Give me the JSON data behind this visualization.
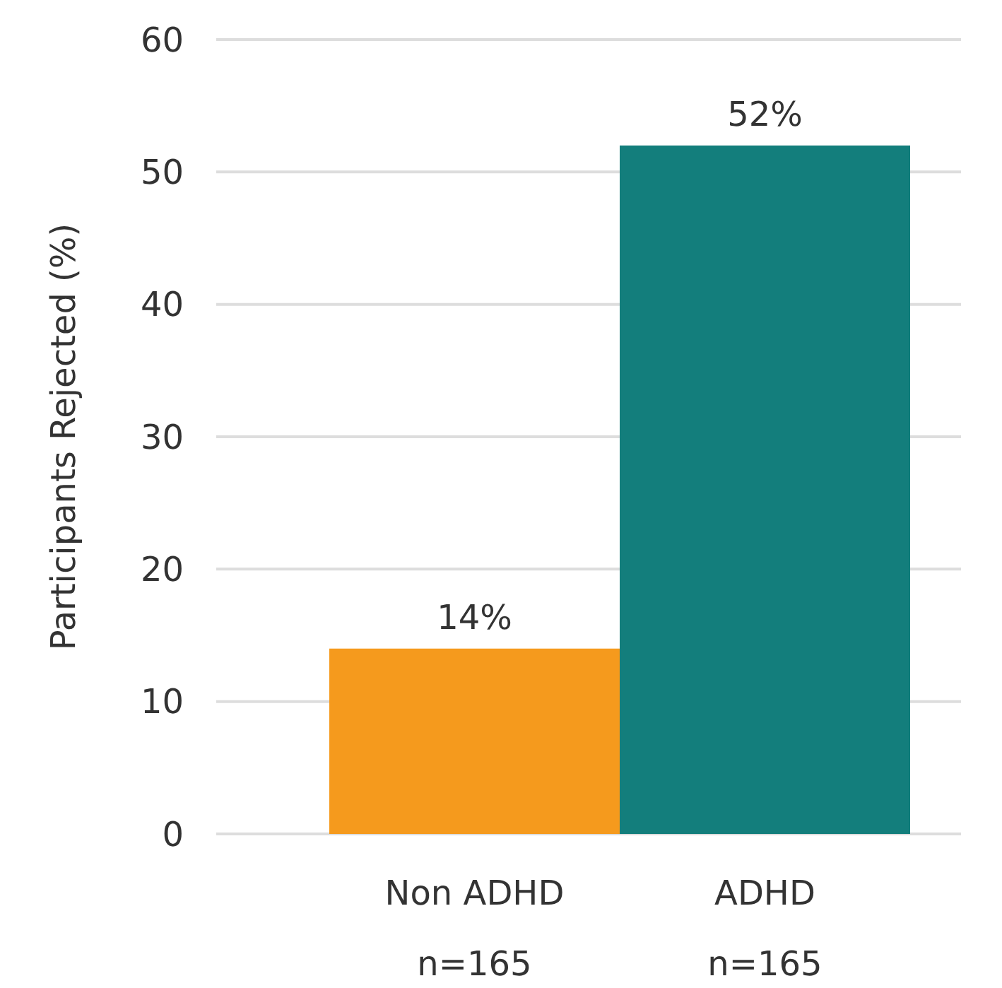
{
  "chart_data": {
    "type": "bar",
    "ylabel": "Participants Rejected (%)",
    "categories": [
      "Non ADHD\nn=165",
      "ADHD\nn=165"
    ],
    "values": [
      14,
      52
    ],
    "colors": [
      "#f59a1d",
      "#137e7c"
    ],
    "value_labels": [
      "14%",
      "52%"
    ],
    "ylim": [
      0,
      60
    ],
    "yticks": [
      0,
      10,
      20,
      30,
      40,
      50,
      60
    ],
    "grid": "y"
  }
}
